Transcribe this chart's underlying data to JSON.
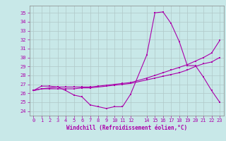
{
  "xlabel": "Windchill (Refroidissement éolien,°C)",
  "bg_color": "#c8e8e8",
  "grid_color": "#b0c8c8",
  "line_color": "#aa00aa",
  "x_ticks": [
    0,
    1,
    2,
    3,
    4,
    5,
    6,
    7,
    8,
    9,
    10,
    11,
    12,
    14,
    15,
    16,
    17,
    18,
    19,
    20,
    21,
    22,
    23
  ],
  "y_ticks": [
    24,
    25,
    26,
    27,
    28,
    29,
    30,
    31,
    32,
    33,
    34,
    35
  ],
  "xlim": [
    -0.5,
    23.5
  ],
  "ylim": [
    23.5,
    35.8
  ],
  "series1_x": [
    0,
    1,
    2,
    3,
    4,
    5,
    6,
    7,
    8,
    9,
    10,
    11,
    12,
    14,
    15,
    16,
    17,
    18,
    19,
    20,
    21,
    22,
    23
  ],
  "series1_y": [
    26.3,
    26.8,
    26.8,
    26.7,
    26.3,
    25.8,
    25.6,
    24.7,
    24.5,
    24.3,
    24.5,
    24.5,
    25.9,
    30.3,
    35.0,
    35.1,
    33.8,
    31.8,
    29.1,
    29.1,
    27.8,
    26.3,
    25.0
  ],
  "series2_x": [
    0,
    1,
    2,
    3,
    4,
    5,
    6,
    7,
    8,
    9,
    10,
    11,
    12,
    14,
    15,
    16,
    17,
    18,
    19,
    20,
    21,
    22,
    23
  ],
  "series2_y": [
    26.3,
    26.5,
    26.5,
    26.5,
    26.5,
    26.5,
    26.6,
    26.6,
    26.7,
    26.8,
    26.9,
    27.0,
    27.1,
    27.5,
    27.7,
    27.9,
    28.1,
    28.3,
    28.6,
    29.0,
    29.3,
    29.5,
    30.0
  ],
  "series3_x": [
    0,
    1,
    2,
    3,
    4,
    5,
    6,
    7,
    8,
    9,
    10,
    11,
    12,
    14,
    15,
    16,
    17,
    18,
    19,
    20,
    21,
    22,
    23
  ],
  "series3_y": [
    26.3,
    26.5,
    26.6,
    26.7,
    26.7,
    26.7,
    26.7,
    26.7,
    26.8,
    26.9,
    27.0,
    27.1,
    27.2,
    27.7,
    28.0,
    28.3,
    28.6,
    28.9,
    29.2,
    29.6,
    30.0,
    30.5,
    31.9
  ],
  "tick_fontsize": 5,
  "xlabel_fontsize": 5.5,
  "marker_size": 2.0,
  "line_width": 0.8
}
